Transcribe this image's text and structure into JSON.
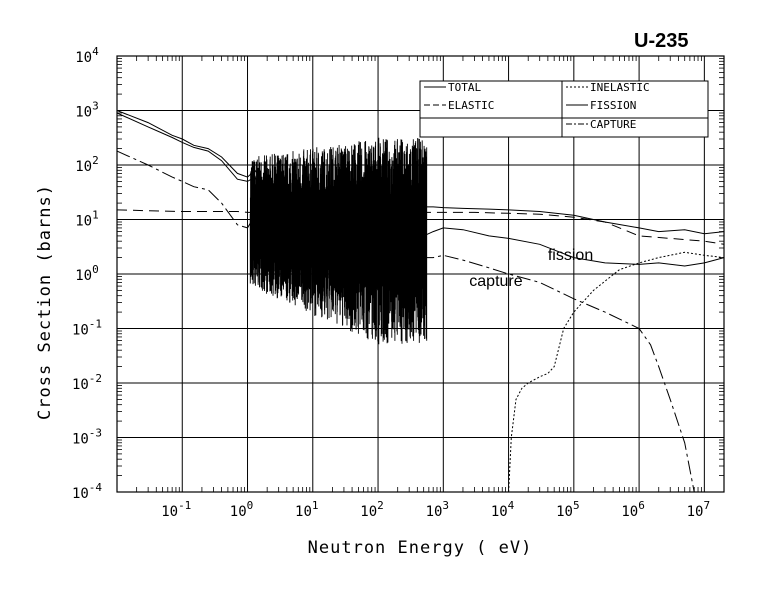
{
  "chart_data": {
    "type": "line",
    "title": "U-235",
    "xlabel": "Neutron Energy ( eV)",
    "ylabel": "Cross Section (barns)",
    "xscale": "log",
    "yscale": "log",
    "xlim": [
      0.01,
      20000000
    ],
    "ylim": [
      0.0001,
      10000
    ],
    "grid": true,
    "legend_position": "top-right",
    "x_ticks": [
      {
        "base": "10",
        "exp": "-1",
        "value": 0.1
      },
      {
        "base": "10",
        "exp": "0",
        "value": 1
      },
      {
        "base": "10",
        "exp": "1",
        "value": 10
      },
      {
        "base": "10",
        "exp": "2",
        "value": 100
      },
      {
        "base": "10",
        "exp": "3",
        "value": 1000
      },
      {
        "base": "10",
        "exp": "4",
        "value": 10000
      },
      {
        "base": "10",
        "exp": "5",
        "value": 100000
      },
      {
        "base": "10",
        "exp": "6",
        "value": 1000000
      },
      {
        "base": "10",
        "exp": "7",
        "value": 10000000
      }
    ],
    "y_ticks": [
      {
        "base": "10",
        "exp": "-4",
        "value": 0.0001
      },
      {
        "base": "10",
        "exp": "-3",
        "value": 0.001
      },
      {
        "base": "10",
        "exp": "-2",
        "value": 0.01
      },
      {
        "base": "10",
        "exp": "-1",
        "value": 0.1
      },
      {
        "base": "10",
        "exp": "0",
        "value": 1
      },
      {
        "base": "10",
        "exp": "1",
        "value": 10
      },
      {
        "base": "10",
        "exp": "2",
        "value": 100
      },
      {
        "base": "10",
        "exp": "3",
        "value": 1000
      },
      {
        "base": "10",
        "exp": "4",
        "value": 10000
      }
    ],
    "series": [
      {
        "name": "TOTAL",
        "style": "solid",
        "x": [
          0.01,
          0.03,
          0.07,
          0.1,
          0.15,
          0.25,
          0.4,
          0.7,
          1.0,
          1.3,
          2,
          4,
          10,
          30,
          60,
          100,
          200,
          300,
          500,
          700,
          1000,
          2000,
          5000,
          10000,
          30000,
          100000,
          300000,
          1000000,
          2000000,
          5000000,
          10000000,
          20000000
        ],
        "y": [
          1000,
          600,
          350,
          300,
          230,
          200,
          140,
          70,
          60,
          80,
          40,
          30,
          25,
          22,
          20,
          18,
          17,
          17,
          17,
          17,
          16.5,
          16,
          15.5,
          15,
          14,
          12,
          9,
          7,
          6,
          6.5,
          5.5,
          6
        ]
      },
      {
        "name": "ELASTIC",
        "style": "dashed",
        "x": [
          0.01,
          0.03,
          0.1,
          0.2,
          0.3,
          0.5,
          0.7,
          1.0,
          1.3,
          2,
          4,
          10,
          30,
          60,
          100,
          200,
          300,
          500,
          700,
          1000,
          3000,
          10000,
          30000,
          100000,
          300000,
          1000000,
          3000000,
          10000000,
          20000000
        ],
        "y": [
          15,
          14.5,
          14,
          14,
          14,
          14,
          14,
          13.5,
          13.5,
          13.5,
          13.5,
          13.5,
          13.5,
          13.5,
          13.5,
          13.5,
          13.5,
          13.5,
          13.5,
          13.5,
          13.5,
          13,
          12.5,
          11,
          9,
          5,
          4.5,
          4,
          3.5
        ]
      },
      {
        "name": "INELASTIC",
        "style": "dotted",
        "x": [
          10000,
          11000,
          13000,
          16000,
          20000,
          30000,
          40000,
          50000,
          70000,
          100000,
          200000,
          500000,
          1000000,
          2000000,
          5000000,
          10000000,
          20000000
        ],
        "y": [
          0.0001,
          0.001,
          0.005,
          0.008,
          0.01,
          0.013,
          0.015,
          0.02,
          0.1,
          0.2,
          0.5,
          1.2,
          1.6,
          2.0,
          2.5,
          2.2,
          2.0
        ]
      },
      {
        "name": "FISSION",
        "style": "solid",
        "x": [
          0.01,
          0.03,
          0.07,
          0.1,
          0.15,
          0.25,
          0.4,
          0.7,
          1.0,
          1.3,
          2,
          4,
          10,
          30,
          60,
          100,
          200,
          300,
          500,
          700,
          1000,
          2000,
          5000,
          10000,
          30000,
          100000,
          300000,
          1000000,
          2000000,
          5000000,
          10000000,
          20000000
        ],
        "y": [
          900,
          500,
          320,
          260,
          210,
          180,
          120,
          55,
          50,
          60,
          25,
          18,
          12,
          8,
          6,
          6,
          5,
          5,
          5,
          6,
          7,
          6.5,
          5,
          4.5,
          3.5,
          2,
          1.6,
          1.5,
          1.6,
          1.4,
          1.6,
          2.0
        ]
      },
      {
        "name": "CAPTURE",
        "style": "dash-dot",
        "x": [
          0.01,
          0.03,
          0.07,
          0.1,
          0.15,
          0.25,
          0.4,
          0.7,
          1.0,
          1.3,
          2,
          4,
          10,
          30,
          60,
          100,
          200,
          300,
          500,
          700,
          1000,
          2000,
          5000,
          10000,
          30000,
          100000,
          300000,
          1000000,
          1500000,
          2000000,
          3000000,
          5000000,
          7000000
        ],
        "y": [
          180,
          100,
          60,
          50,
          40,
          35,
          20,
          8,
          7,
          12,
          5,
          4,
          3,
          2.5,
          2,
          2,
          2,
          2,
          2,
          2,
          2.2,
          1.8,
          1.3,
          1.0,
          0.7,
          0.35,
          0.2,
          0.1,
          0.05,
          0.02,
          0.005,
          0.0008,
          0.0001
        ]
      }
    ],
    "annotations": [
      {
        "text": "fission",
        "x": 40000,
        "y": 1.8
      },
      {
        "text": "capture",
        "x": 2500,
        "y": 0.6
      }
    ]
  }
}
